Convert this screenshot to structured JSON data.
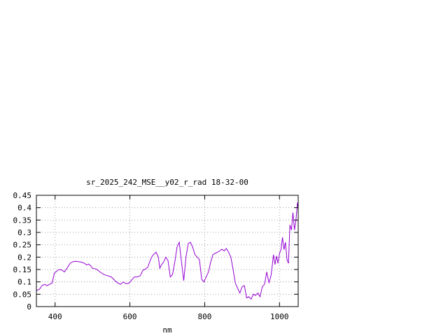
{
  "chart_data": {
    "type": "line",
    "title": "sr_2025_242_MSE__y02_r_rad 18-32-00",
    "xlabel": "nm",
    "ylabel": "",
    "xlim": [
      350,
      1050
    ],
    "ylim": [
      0,
      0.45
    ],
    "x_ticks": [
      400,
      600,
      800,
      1000
    ],
    "x_tick_labels": [
      "400",
      "600",
      "800",
      "1000"
    ],
    "y_ticks": [
      0,
      0.05,
      0.1,
      0.15,
      0.2,
      0.25,
      0.3,
      0.35,
      0.4,
      0.45
    ],
    "y_tick_labels": [
      "0",
      "0.05",
      "0.1",
      "0.15",
      "0.2",
      "0.25",
      "0.3",
      "0.35",
      "0.4",
      "0.45"
    ],
    "grid": true,
    "colors": {
      "series": "#9400d3",
      "grid": "#a0a0a0",
      "axes": "#000000"
    },
    "series": [
      {
        "x": [
          350,
          358,
          365,
          372,
          378,
          385,
          392,
          398,
          402,
          410,
          418,
          425,
          432,
          440,
          448,
          455,
          462,
          470,
          478,
          485,
          490,
          495,
          500,
          510,
          520,
          530,
          540,
          550,
          560,
          568,
          575,
          582,
          590,
          598,
          605,
          612,
          620,
          628,
          635,
          640,
          648,
          655,
          660,
          665,
          670,
          676,
          680,
          685,
          690,
          696,
          702,
          708,
          714,
          720,
          726,
          732,
          738,
          744,
          750,
          756,
          762,
          768,
          774,
          780,
          786,
          792,
          798,
          804,
          810,
          816,
          822,
          828,
          834,
          840,
          846,
          852,
          858,
          864,
          870,
          876,
          882,
          888,
          894,
          900,
          906,
          912,
          918,
          924,
          930,
          936,
          942,
          948,
          954,
          960,
          966,
          972,
          978,
          984,
          988,
          992,
          996,
          1000,
          1004,
          1008,
          1012,
          1016,
          1020,
          1024,
          1028,
          1032,
          1036,
          1040,
          1044,
          1048,
          1050
        ],
        "y": [
          0.065,
          0.07,
          0.085,
          0.09,
          0.085,
          0.09,
          0.095,
          0.135,
          0.14,
          0.15,
          0.148,
          0.14,
          0.155,
          0.175,
          0.182,
          0.183,
          0.182,
          0.18,
          0.175,
          0.168,
          0.172,
          0.165,
          0.155,
          0.152,
          0.14,
          0.13,
          0.125,
          0.12,
          0.105,
          0.095,
          0.09,
          0.1,
          0.092,
          0.095,
          0.108,
          0.12,
          0.12,
          0.125,
          0.148,
          0.15,
          0.16,
          0.19,
          0.205,
          0.213,
          0.22,
          0.2,
          0.155,
          0.17,
          0.18,
          0.2,
          0.185,
          0.12,
          0.13,
          0.18,
          0.24,
          0.26,
          0.18,
          0.105,
          0.2,
          0.255,
          0.26,
          0.24,
          0.21,
          0.2,
          0.19,
          0.11,
          0.1,
          0.12,
          0.14,
          0.18,
          0.21,
          0.215,
          0.22,
          0.225,
          0.232,
          0.225,
          0.235,
          0.22,
          0.2,
          0.15,
          0.095,
          0.075,
          0.055,
          0.08,
          0.085,
          0.035,
          0.04,
          0.03,
          0.05,
          0.045,
          0.055,
          0.04,
          0.08,
          0.09,
          0.14,
          0.095,
          0.13,
          0.21,
          0.17,
          0.205,
          0.175,
          0.215,
          0.23,
          0.28,
          0.23,
          0.26,
          0.19,
          0.175,
          0.33,
          0.31,
          0.38,
          0.31,
          0.35,
          0.42,
          0.4
        ]
      }
    ]
  }
}
